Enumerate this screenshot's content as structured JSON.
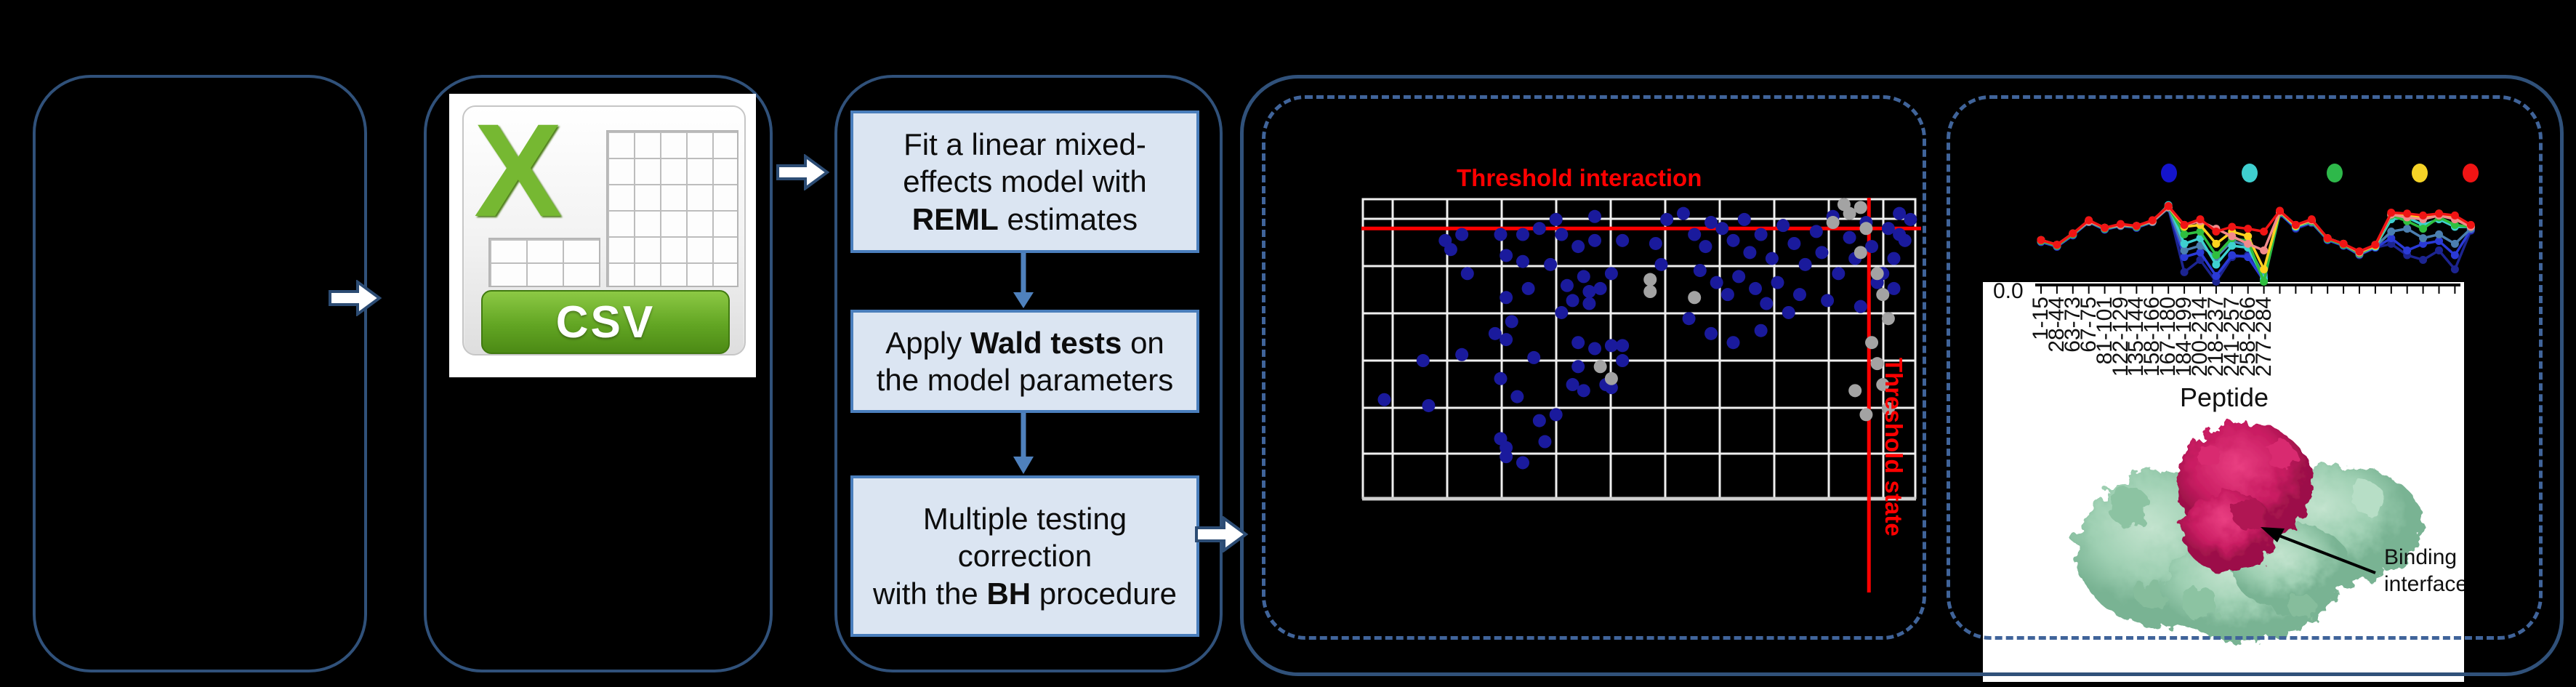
{
  "flow": {
    "boxes": [
      {
        "lines": [
          [
            {
              "t": "Fit a linear mixed-"
            }
          ],
          [
            {
              "t": "effects model with"
            }
          ],
          [
            {
              "t": "REML",
              "b": true
            },
            {
              "t": " estimates"
            }
          ]
        ]
      },
      {
        "lines": [
          [
            {
              "t": "Apply "
            },
            {
              "t": "Wald tests",
              "b": true
            },
            {
              "t": " on"
            }
          ],
          [
            {
              "t": "the model parameters"
            }
          ]
        ]
      },
      {
        "lines": [
          [
            {
              "t": "Multiple testing"
            }
          ],
          [
            {
              "t": "correction"
            }
          ],
          [
            {
              "t": "with the "
            },
            {
              "t": "BH",
              "b": true
            },
            {
              "t": " procedure"
            }
          ]
        ]
      }
    ]
  },
  "csv": {
    "banner": "CSV",
    "letter": "X"
  },
  "scatter": {
    "title": "Threshold interaction",
    "vline_label": "Threshold state"
  },
  "uptake": {
    "y_tick": "0.0",
    "xlabel": "Peptide",
    "annotation_line1": "Binding",
    "annotation_line2": "interface",
    "tick_labels": [
      "1-15",
      "28-44",
      "63-73",
      "67-75",
      "81-101",
      "122-129",
      "135-144",
      "158-166",
      "167-180",
      "184-199",
      "200-214",
      "218-237",
      "241-257",
      "258-266",
      "277-284"
    ]
  },
  "colors": {
    "panel_border": "#30517a",
    "dashed_border": "#40649a",
    "box_fill": "#dbe5f2",
    "box_border": "#4a7ebc",
    "flow_arrow": "#4f81bd",
    "big_arrow_fill": "#ffffff",
    "big_arrow_stroke": "#2c4c74",
    "threshold_red": "#ff0000",
    "scatter_blue": "#1a1a9c",
    "scatter_gray": "#a3a3a3",
    "grid_line": "#efefef",
    "axis_gray": "#cfcfcf",
    "csv_green": "#76b832",
    "protein_green": "#9fd0b3",
    "protein_magenta": "#c91d62"
  },
  "chart_data": [
    {
      "type": "scatter",
      "title": "Threshold interaction",
      "grid": true,
      "axis_tick_labels_visible": false,
      "thresholds": {
        "horizontal_label": "Threshold interaction",
        "horizontal_y_pct": 10,
        "vertical_label": "Threshold state",
        "vertical_x_pct": 91.5
      },
      "points_pct": {
        "blue": [
          [
            35,
            7
          ],
          [
            42,
            6
          ],
          [
            55,
            7
          ],
          [
            32,
            10
          ],
          [
            18,
            12
          ],
          [
            25,
            12
          ],
          [
            29,
            12
          ],
          [
            36,
            12
          ],
          [
            15,
            14
          ],
          [
            16,
            17
          ],
          [
            39,
            16
          ],
          [
            42,
            14
          ],
          [
            47,
            14
          ],
          [
            53,
            15
          ],
          [
            54,
            22
          ],
          [
            29,
            21
          ],
          [
            34,
            22
          ],
          [
            19,
            25
          ],
          [
            26,
            19
          ],
          [
            40,
            26
          ],
          [
            45,
            25
          ],
          [
            30,
            30
          ],
          [
            26,
            33
          ],
          [
            37,
            29
          ],
          [
            41,
            31
          ],
          [
            43,
            30
          ],
          [
            38,
            34
          ],
          [
            41,
            35
          ],
          [
            36,
            38
          ],
          [
            27,
            41
          ],
          [
            24,
            45
          ],
          [
            26,
            47
          ],
          [
            18,
            52
          ],
          [
            11,
            54
          ],
          [
            31,
            53
          ],
          [
            39,
            48
          ],
          [
            42,
            50
          ],
          [
            45,
            49
          ],
          [
            47,
            49
          ],
          [
            39,
            56
          ],
          [
            47,
            54
          ],
          [
            25,
            60
          ],
          [
            38,
            62
          ],
          [
            40,
            64
          ],
          [
            44,
            62
          ],
          [
            45,
            63
          ],
          [
            4,
            67
          ],
          [
            12,
            69
          ],
          [
            28,
            66
          ],
          [
            32,
            74
          ],
          [
            35,
            72
          ],
          [
            25,
            80
          ],
          [
            33,
            81
          ],
          [
            26,
            83
          ],
          [
            26,
            86
          ],
          [
            29,
            88
          ],
          [
            58,
            5
          ],
          [
            63,
            8
          ],
          [
            60,
            12
          ],
          [
            62,
            16
          ],
          [
            65,
            10
          ],
          [
            67,
            14
          ],
          [
            69,
            7
          ],
          [
            70,
            18
          ],
          [
            72,
            12
          ],
          [
            74,
            20
          ],
          [
            76,
            9
          ],
          [
            78,
            15
          ],
          [
            80,
            22
          ],
          [
            82,
            11
          ],
          [
            83,
            18
          ],
          [
            85,
            6
          ],
          [
            86,
            25
          ],
          [
            88,
            13
          ],
          [
            89,
            20
          ],
          [
            91,
            8
          ],
          [
            92,
            16
          ],
          [
            93,
            28
          ],
          [
            95,
            10
          ],
          [
            96,
            20
          ],
          [
            97,
            5
          ],
          [
            98,
            14
          ],
          [
            61,
            24
          ],
          [
            64,
            28
          ],
          [
            66,
            32
          ],
          [
            68,
            26
          ],
          [
            71,
            30
          ],
          [
            73,
            35
          ],
          [
            75,
            28
          ],
          [
            77,
            38
          ],
          [
            79,
            32
          ],
          [
            84,
            34
          ],
          [
            90,
            36
          ],
          [
            59,
            40
          ],
          [
            63,
            45
          ],
          [
            67,
            48
          ],
          [
            72,
            44
          ],
          [
            99,
            7
          ],
          [
            97,
            12
          ],
          [
            94,
            25
          ],
          [
            96,
            30
          ]
        ],
        "gray": [
          [
            52,
            27
          ],
          [
            52,
            31
          ],
          [
            60,
            33
          ],
          [
            43,
            56
          ],
          [
            45,
            60
          ],
          [
            85,
            8
          ],
          [
            88,
            5
          ],
          [
            90,
            3
          ],
          [
            91,
            10
          ],
          [
            93,
            25
          ],
          [
            94,
            32
          ],
          [
            95,
            40
          ],
          [
            92,
            48
          ],
          [
            93,
            55
          ],
          [
            94,
            62
          ],
          [
            95,
            70
          ],
          [
            89,
            64
          ],
          [
            91,
            72
          ],
          [
            87,
            2
          ],
          [
            90,
            18
          ]
        ]
      }
    },
    {
      "type": "line",
      "xlabel": "Peptide",
      "y_tick_label_visible": "0.0",
      "legend_position": "top",
      "legend_dot_colors": [
        "#1414cc",
        "#3fcfcf",
        "#2eb84a",
        "#f5d327",
        "#f01414"
      ],
      "categories": [
        "1-15",
        "28-44",
        "63-73",
        "67-75",
        "81-101",
        "122-129",
        "135-144",
        "158-166",
        "167-180",
        "184-199",
        "200-214",
        "218-237",
        "241-257",
        "258-266",
        "277-284"
      ],
      "n_points": 28,
      "series": [
        {
          "color": "#1c2490",
          "values": [
            0.44,
            0.39,
            0.51,
            0.65,
            0.57,
            0.61,
            0.59,
            0.65,
            0.8,
            0.12,
            0.25,
            0.02,
            0.28,
            0.3,
            0.1,
            0.74,
            0.58,
            0.64,
            0.46,
            0.4,
            0.3,
            0.38,
            0.42,
            0.3,
            0.25,
            0.35,
            0.15,
            0.56
          ]
        },
        {
          "color": "#2a3ad6",
          "values": [
            0.44,
            0.39,
            0.51,
            0.65,
            0.57,
            0.61,
            0.59,
            0.65,
            0.8,
            0.28,
            0.33,
            0.08,
            0.3,
            0.28,
            0.03,
            0.74,
            0.59,
            0.65,
            0.46,
            0.4,
            0.31,
            0.38,
            0.48,
            0.35,
            0.42,
            0.45,
            0.3,
            0.57
          ]
        },
        {
          "color": "#4b7fb0",
          "values": [
            0.45,
            0.4,
            0.52,
            0.65,
            0.58,
            0.61,
            0.6,
            0.65,
            0.8,
            0.35,
            0.4,
            0.28,
            0.45,
            0.4,
            0.08,
            0.75,
            0.6,
            0.65,
            0.47,
            0.41,
            0.31,
            0.39,
            0.55,
            0.58,
            0.48,
            0.52,
            0.42,
            0.58
          ]
        },
        {
          "color": "#3ed0d0",
          "values": [
            0.45,
            0.4,
            0.52,
            0.66,
            0.58,
            0.62,
            0.6,
            0.66,
            0.83,
            0.42,
            0.48,
            0.2,
            0.4,
            0.38,
            0.05,
            0.75,
            0.6,
            0.66,
            0.47,
            0.41,
            0.32,
            0.39,
            0.68,
            0.7,
            0.62,
            0.68,
            0.6,
            0.6
          ]
        },
        {
          "color": "#2fbf3f",
          "values": [
            0.45,
            0.4,
            0.52,
            0.66,
            0.58,
            0.62,
            0.6,
            0.66,
            0.81,
            0.52,
            0.55,
            0.3,
            0.48,
            0.45,
            0.02,
            0.75,
            0.61,
            0.66,
            0.47,
            0.41,
            0.32,
            0.4,
            0.72,
            0.66,
            0.58,
            0.7,
            0.62,
            0.6
          ]
        },
        {
          "color": "#ffd21f",
          "values": [
            0.46,
            0.41,
            0.53,
            0.66,
            0.59,
            0.62,
            0.61,
            0.66,
            0.81,
            0.6,
            0.62,
            0.42,
            0.55,
            0.5,
            0.15,
            0.76,
            0.61,
            0.67,
            0.48,
            0.42,
            0.33,
            0.4,
            0.74,
            0.72,
            0.7,
            0.74,
            0.7,
            0.61
          ]
        },
        {
          "color": "#f28b8b",
          "values": [
            0.46,
            0.41,
            0.53,
            0.66,
            0.59,
            0.62,
            0.61,
            0.66,
            0.81,
            0.62,
            0.66,
            0.58,
            0.5,
            0.42,
            0.35,
            0.76,
            0.62,
            0.67,
            0.48,
            0.42,
            0.33,
            0.41,
            0.73,
            0.7,
            0.68,
            0.72,
            0.68,
            0.6
          ]
        },
        {
          "color": "#f01414",
          "values": [
            0.46,
            0.41,
            0.53,
            0.67,
            0.59,
            0.63,
            0.61,
            0.67,
            0.82,
            0.62,
            0.68,
            0.55,
            0.6,
            0.58,
            0.55,
            0.77,
            0.62,
            0.68,
            0.48,
            0.42,
            0.34,
            0.41,
            0.75,
            0.74,
            0.72,
            0.74,
            0.72,
            0.62
          ]
        }
      ]
    }
  ]
}
